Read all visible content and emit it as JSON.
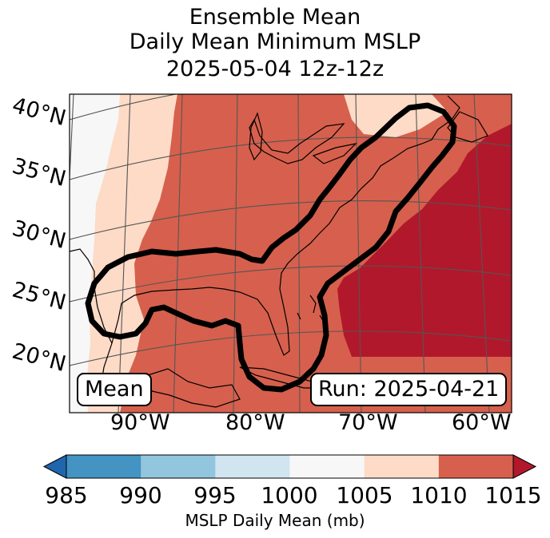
{
  "title": {
    "line1": "Ensemble Mean",
    "line2": "Daily Mean Minimum MSLP",
    "line3": "2025-05-04 12z-12z"
  },
  "map": {
    "latitude_labels": [
      "40°N",
      "35°N",
      "30°N",
      "25°N",
      "20°N"
    ],
    "longitude_labels": [
      "90°W",
      "80°W",
      "70°W",
      "60°W"
    ],
    "mean_label": "Mean",
    "run_label": "Run: 2025-04-21",
    "contour_color": "#000000",
    "land_outline_color": "#000000",
    "gridline_color": "#555555"
  },
  "colorbar": {
    "label": "MSLP Daily Mean (mb)",
    "ticks": [
      "985",
      "990",
      "995",
      "1000",
      "1005",
      "1010",
      "1015"
    ],
    "bins": [
      {
        "range": "<985",
        "color": "#2166ac"
      },
      {
        "range": "985-990",
        "color": "#4393c3"
      },
      {
        "range": "990-995",
        "color": "#92c5de"
      },
      {
        "range": "995-1000",
        "color": "#d1e5f0"
      },
      {
        "range": "1000-1005",
        "color": "#f7f7f7"
      },
      {
        "range": "1005-1010",
        "color": "#fddbc7"
      },
      {
        "range": "1010-1015",
        "color": "#d6604d"
      },
      {
        "range": ">1015",
        "color": "#b2182b"
      }
    ]
  }
}
